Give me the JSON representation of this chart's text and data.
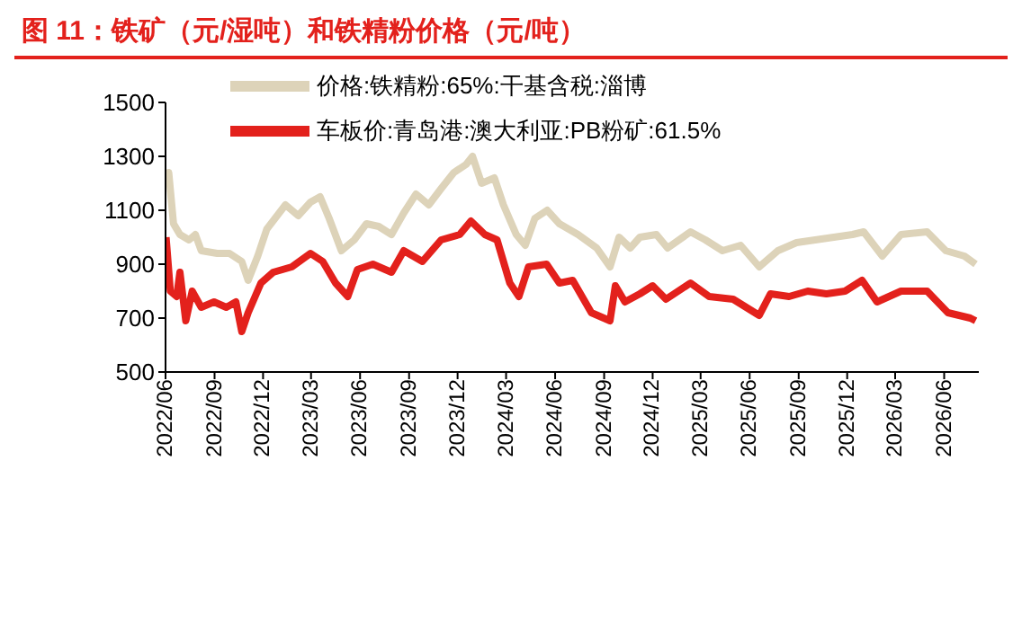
{
  "chart_data": {
    "type": "line",
    "title": "图 11：铁矿（元/湿吨）和铁精粉价格（元/吨）",
    "series": [
      {
        "name": "车板价:青岛港:澳大利亚:PB粉矿:61.5%",
        "color": "#e3211c",
        "x": [
          "2022-06-02",
          "2022-06-10",
          "2022-06-22",
          "2022-06-28",
          "2022-07-09",
          "2022-07-21",
          "2022-08-07",
          "2022-08-31",
          "2022-09-23",
          "2022-10-11",
          "2022-10-22",
          "2022-11-03",
          "2022-11-27",
          "2022-12-20",
          "2023-01-24",
          "2023-02-28",
          "2023-03-23",
          "2023-04-16",
          "2023-05-09",
          "2023-05-27",
          "2023-06-25",
          "2023-07-30",
          "2023-08-22",
          "2023-09-26",
          "2023-10-31",
          "2023-12-05",
          "2023-12-26",
          "2024-01-21",
          "2024-02-13",
          "2024-03-08",
          "2024-03-25",
          "2024-04-12",
          "2024-05-16",
          "2024-06-09",
          "2024-07-04",
          "2024-08-08",
          "2024-09-12",
          "2024-09-22",
          "2024-10-10",
          "2024-11-07",
          "2024-12-01",
          "2024-12-26",
          "2025-02-10",
          "2025-03-17",
          "2025-05-01",
          "2025-06-19",
          "2025-07-10",
          "2025-08-14",
          "2025-09-18",
          "2025-10-23",
          "2025-11-27",
          "2025-12-29",
          "2026-01-26",
          "2026-03-12",
          "2026-04-30",
          "2026-06-08",
          "2026-07-20",
          "2026-07-30"
        ],
        "values": [
          1000,
          800,
          780,
          870,
          690,
          800,
          740,
          760,
          740,
          760,
          650,
          720,
          830,
          870,
          890,
          940,
          910,
          830,
          780,
          880,
          900,
          870,
          950,
          910,
          990,
          1010,
          1060,
          1010,
          990,
          830,
          780,
          890,
          900,
          830,
          840,
          720,
          690,
          820,
          760,
          790,
          820,
          770,
          830,
          780,
          770,
          710,
          790,
          780,
          800,
          790,
          800,
          840,
          760,
          800,
          800,
          720,
          700,
          690
        ]
      },
      {
        "name": "价格:铁精粉:65%:干基含税:淄博",
        "color": "#ddd3b9",
        "x": [
          "2022-06-02",
          "2022-06-07",
          "2022-06-16",
          "2022-06-28",
          "2022-07-15",
          "2022-07-27",
          "2022-08-07",
          "2022-09-06",
          "2022-09-29",
          "2022-10-22",
          "2022-11-03",
          "2022-11-21",
          "2022-12-08",
          "2023-01-12",
          "2023-02-05",
          "2023-02-28",
          "2023-03-18",
          "2023-04-04",
          "2023-04-27",
          "2023-05-21",
          "2023-06-13",
          "2023-07-06",
          "2023-07-30",
          "2023-08-22",
          "2023-09-14",
          "2023-10-08",
          "2023-10-31",
          "2023-11-24",
          "2023-12-17",
          "2023-12-29",
          "2024-01-15",
          "2024-02-08",
          "2024-02-25",
          "2024-03-20",
          "2024-04-06",
          "2024-04-24",
          "2024-05-17",
          "2024-06-09",
          "2024-07-14",
          "2024-08-18",
          "2024-09-12",
          "2024-09-29",
          "2024-10-20",
          "2024-11-07",
          "2024-12-08",
          "2024-12-29",
          "2025-02-10",
          "2025-03-10",
          "2025-04-11",
          "2025-05-15",
          "2025-06-19",
          "2025-07-24",
          "2025-08-28",
          "2025-10-02",
          "2025-11-06",
          "2025-12-11",
          "2026-01-01",
          "2026-02-05",
          "2026-03-12",
          "2026-04-30",
          "2026-06-04",
          "2026-07-09",
          "2026-07-30"
        ],
        "values": [
          1200,
          1240,
          1050,
          1010,
          990,
          1010,
          950,
          940,
          940,
          910,
          840,
          930,
          1030,
          1120,
          1080,
          1130,
          1150,
          1070,
          950,
          990,
          1050,
          1040,
          1010,
          1090,
          1160,
          1120,
          1180,
          1240,
          1270,
          1300,
          1200,
          1220,
          1120,
          1010,
          970,
          1070,
          1100,
          1050,
          1010,
          960,
          890,
          1000,
          960,
          1000,
          1010,
          960,
          1020,
          990,
          950,
          970,
          890,
          950,
          980,
          990,
          1000,
          1010,
          1020,
          930,
          1010,
          1020,
          950,
          930,
          900
        ]
      }
    ],
    "xlim": [
      "2022-06-01",
      "2026-08-05"
    ],
    "xticks": [
      {
        "value": "2022-06-01",
        "label": "2022/06"
      },
      {
        "value": "2022-09-01",
        "label": "2022/09"
      },
      {
        "value": "2022-12-01",
        "label": "2022/12"
      },
      {
        "value": "2023-03-01",
        "label": "2023/03"
      },
      {
        "value": "2023-06-01",
        "label": "2023/06"
      },
      {
        "value": "2023-09-01",
        "label": "2023/09"
      },
      {
        "value": "2023-12-01",
        "label": "2023/12"
      },
      {
        "value": "2024-03-01",
        "label": "2024/03"
      },
      {
        "value": "2024-06-01",
        "label": "2024/06"
      },
      {
        "value": "2024-09-01",
        "label": "2024/09"
      },
      {
        "value": "2024-12-01",
        "label": "2024/12"
      },
      {
        "value": "2025-03-01",
        "label": "2025/03"
      },
      {
        "value": "2025-06-01",
        "label": "2025/06"
      },
      {
        "value": "2025-09-01",
        "label": "2025/09"
      },
      {
        "value": "2025-12-01",
        "label": "2025/12"
      },
      {
        "value": "2026-03-01",
        "label": "2026/03"
      },
      {
        "value": "2026-06-01",
        "label": "2026/06"
      }
    ],
    "ylim": [
      500,
      1500
    ],
    "yticks": [
      500,
      700,
      900,
      1100,
      1300,
      1500
    ],
    "grid": false,
    "legend": "top",
    "marker": "none",
    "line_style": "solid"
  }
}
